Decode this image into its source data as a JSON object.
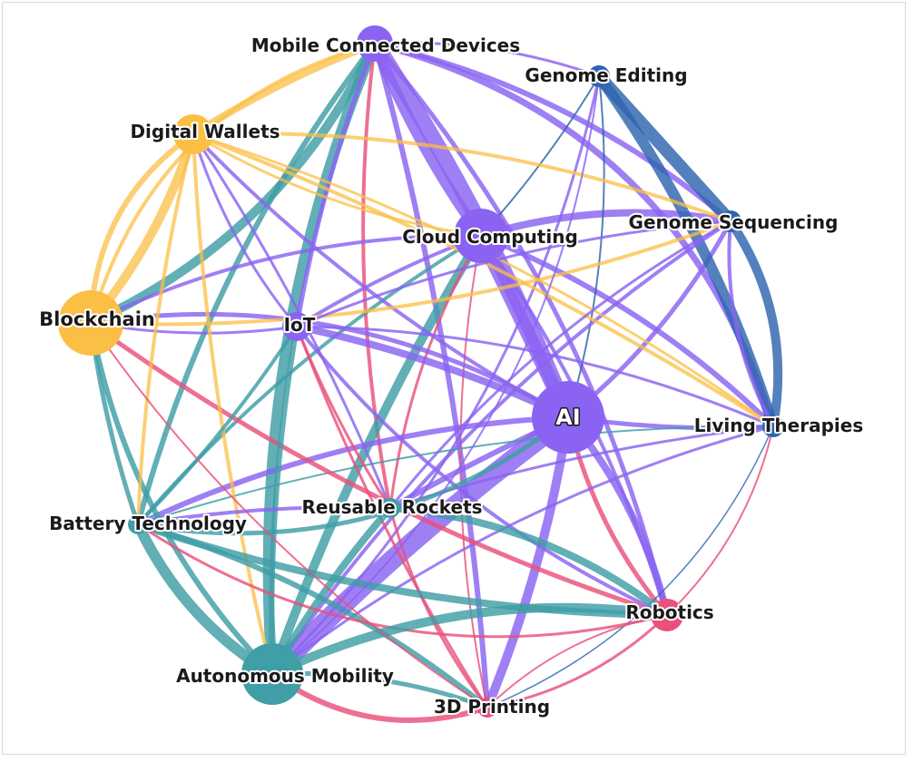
{
  "colors": {
    "purple": "#8a63f2",
    "teal": "#3f9ea6",
    "yellow": "#fbbf45",
    "blue": "#2f64b0",
    "pink": "#e9507a"
  },
  "nodes": [
    {
      "id": "mobile",
      "label": "Mobile Connected Devices",
      "color": "purple"
    },
    {
      "id": "genome_edit",
      "label": "Genome Editing",
      "color": "blue"
    },
    {
      "id": "wallets",
      "label": "Digital Wallets",
      "color": "yellow"
    },
    {
      "id": "cloud",
      "label": "Cloud Computing",
      "color": "purple"
    },
    {
      "id": "genome_seq",
      "label": "Genome Sequencing",
      "color": "blue"
    },
    {
      "id": "blockchain",
      "label": "Blockchain",
      "color": "yellow"
    },
    {
      "id": "iot",
      "label": "IoT",
      "color": "purple"
    },
    {
      "id": "ai",
      "label": "AI",
      "color": "purple"
    },
    {
      "id": "living",
      "label": "Living Therapies",
      "color": "blue"
    },
    {
      "id": "rockets",
      "label": "Reusable Rockets",
      "color": "teal"
    },
    {
      "id": "battery",
      "label": "Battery Technology",
      "color": "teal"
    },
    {
      "id": "robotics",
      "label": "Robotics",
      "color": "pink"
    },
    {
      "id": "mobility",
      "label": "Autonomous Mobility",
      "color": "teal"
    },
    {
      "id": "printing",
      "label": "3D Printing",
      "color": "pink"
    }
  ]
}
